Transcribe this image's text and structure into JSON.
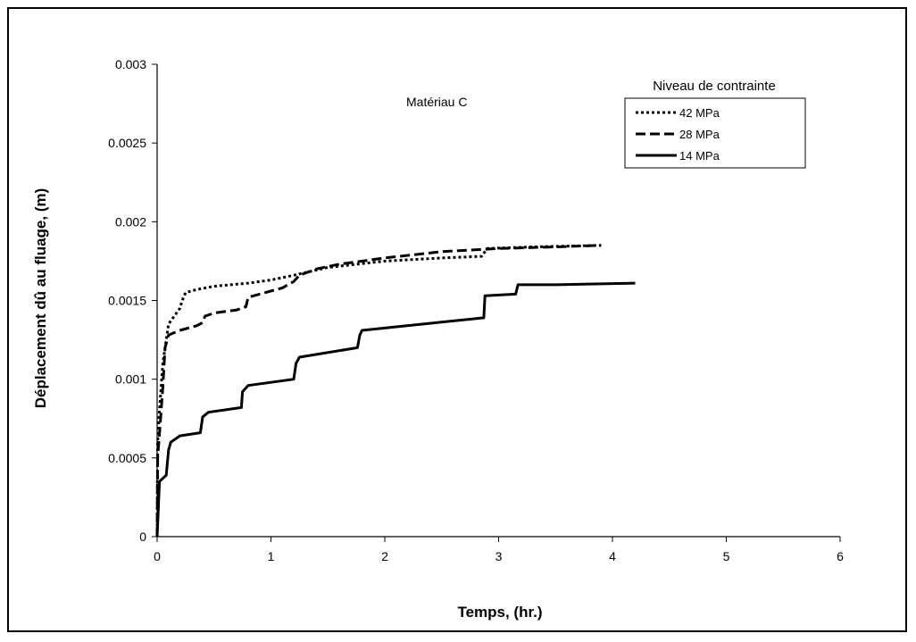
{
  "chart_data": {
    "type": "line",
    "title": "",
    "annotation": "Matériau C",
    "xlabel": "Temps, (hr.)",
    "ylabel": "Déplacement dû au fluage, (m)",
    "xlim": [
      0,
      6
    ],
    "ylim": [
      0,
      0.003
    ],
    "xticks": [
      0,
      1,
      2,
      3,
      4,
      5,
      6
    ],
    "xtick_labels": [
      "0",
      "1",
      "2",
      "3",
      "4",
      "5",
      "6"
    ],
    "yticks": [
      0,
      0.0005,
      0.001,
      0.0015,
      0.002,
      0.0025,
      0.003
    ],
    "ytick_labels": [
      "0",
      "0.0005",
      "0.001",
      "0.0015",
      "0.002",
      "0.0025",
      "0.003"
    ],
    "grid": false,
    "legend": {
      "title": "Niveau de contrainte",
      "position": "top-right"
    },
    "series": [
      {
        "name": "42 MPa",
        "style": "dotted",
        "points": [
          [
            0,
            0
          ],
          [
            0.005,
            0.0006
          ],
          [
            0.02,
            0.0008
          ],
          [
            0.05,
            0.0011
          ],
          [
            0.08,
            0.00125
          ],
          [
            0.1,
            0.00135
          ],
          [
            0.15,
            0.0014
          ],
          [
            0.2,
            0.00145
          ],
          [
            0.22,
            0.0015
          ],
          [
            0.25,
            0.00155
          ],
          [
            0.35,
            0.00157
          ],
          [
            0.5,
            0.00159
          ],
          [
            0.8,
            0.00161
          ],
          [
            1.0,
            0.00163
          ],
          [
            1.2,
            0.00166
          ],
          [
            1.5,
            0.00171
          ],
          [
            2.0,
            0.00175
          ],
          [
            2.5,
            0.00177
          ],
          [
            2.85,
            0.00178
          ],
          [
            2.9,
            0.00183
          ],
          [
            3.3,
            0.00184
          ],
          [
            3.9,
            0.00185
          ]
        ]
      },
      {
        "name": "28 MPa",
        "style": "dashed",
        "points": [
          [
            0,
            0
          ],
          [
            0.005,
            0.0005
          ],
          [
            0.02,
            0.00065
          ],
          [
            0.05,
            0.00095
          ],
          [
            0.07,
            0.0012
          ],
          [
            0.1,
            0.00128
          ],
          [
            0.2,
            0.00131
          ],
          [
            0.35,
            0.00134
          ],
          [
            0.4,
            0.00136
          ],
          [
            0.42,
            0.0014
          ],
          [
            0.5,
            0.00142
          ],
          [
            0.7,
            0.00144
          ],
          [
            0.78,
            0.00146
          ],
          [
            0.8,
            0.00152
          ],
          [
            0.9,
            0.00154
          ],
          [
            1.1,
            0.00158
          ],
          [
            1.2,
            0.00162
          ],
          [
            1.25,
            0.00166
          ],
          [
            1.4,
            0.0017
          ],
          [
            1.6,
            0.00173
          ],
          [
            2.0,
            0.00177
          ],
          [
            2.5,
            0.00181
          ],
          [
            3.0,
            0.00183
          ],
          [
            3.5,
            0.00184
          ],
          [
            3.9,
            0.00185
          ]
        ]
      },
      {
        "name": "14 MPa",
        "style": "solid",
        "points": [
          [
            0,
            0
          ],
          [
            0.02,
            0.00035
          ],
          [
            0.08,
            0.00039
          ],
          [
            0.1,
            0.00055
          ],
          [
            0.12,
            0.0006
          ],
          [
            0.2,
            0.00064
          ],
          [
            0.38,
            0.00066
          ],
          [
            0.4,
            0.00076
          ],
          [
            0.45,
            0.00079
          ],
          [
            0.74,
            0.00082
          ],
          [
            0.75,
            0.00092
          ],
          [
            0.8,
            0.00096
          ],
          [
            1.2,
            0.001
          ],
          [
            1.22,
            0.0011
          ],
          [
            1.25,
            0.00114
          ],
          [
            1.76,
            0.0012
          ],
          [
            1.78,
            0.00128
          ],
          [
            1.8,
            0.00131
          ],
          [
            2.87,
            0.00139
          ],
          [
            2.88,
            0.00153
          ],
          [
            3.15,
            0.00154
          ],
          [
            3.17,
            0.0016
          ],
          [
            3.5,
            0.0016
          ],
          [
            4.2,
            0.00161
          ]
        ]
      }
    ]
  }
}
